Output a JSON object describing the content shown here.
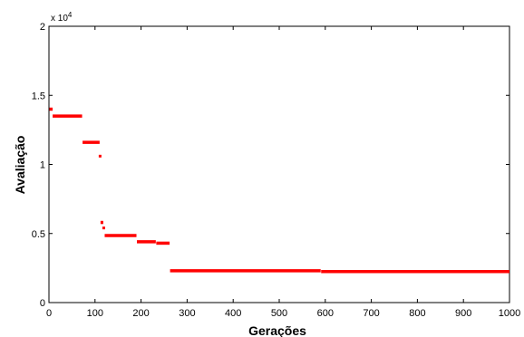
{
  "chart_data": {
    "type": "scatter",
    "xlabel": "Gerações",
    "ylabel": "Avaliação",
    "y_exponent_label": "x 10",
    "y_exponent_power": "4",
    "xlim": [
      0,
      1000
    ],
    "ylim": [
      0,
      20000
    ],
    "grid": false,
    "x_ticks": [
      0,
      100,
      200,
      300,
      400,
      500,
      600,
      700,
      800,
      900,
      1000
    ],
    "x_tick_labels": [
      "0",
      "100",
      "200",
      "300",
      "400",
      "500",
      "600",
      "700",
      "800",
      "900",
      "1000"
    ],
    "y_ticks": [
      0,
      5000,
      10000,
      15000,
      20000
    ],
    "y_tick_labels": [
      "0",
      "0.5",
      "1",
      "1.5",
      "2"
    ],
    "marker_color": "#ff0000",
    "segments": [
      {
        "x_start": 1,
        "x_end": 8,
        "y": 14000
      },
      {
        "x_start": 8,
        "x_end": 72,
        "y": 13500
      },
      {
        "x_start": 73,
        "x_end": 110,
        "y": 11600
      },
      {
        "x_start": 111,
        "x_end": 112,
        "y": 10600
      },
      {
        "x_start": 112,
        "x_end": 118,
        "y": 5800
      },
      {
        "x_start": 119,
        "x_end": 121,
        "y": 5400
      },
      {
        "x_start": 121,
        "x_end": 190,
        "y": 4850
      },
      {
        "x_start": 191,
        "x_end": 232,
        "y": 4400
      },
      {
        "x_start": 233,
        "x_end": 262,
        "y": 4300
      },
      {
        "x_start": 263,
        "x_end": 590,
        "y": 2300
      },
      {
        "x_start": 591,
        "x_end": 1000,
        "y": 2250
      }
    ]
  }
}
